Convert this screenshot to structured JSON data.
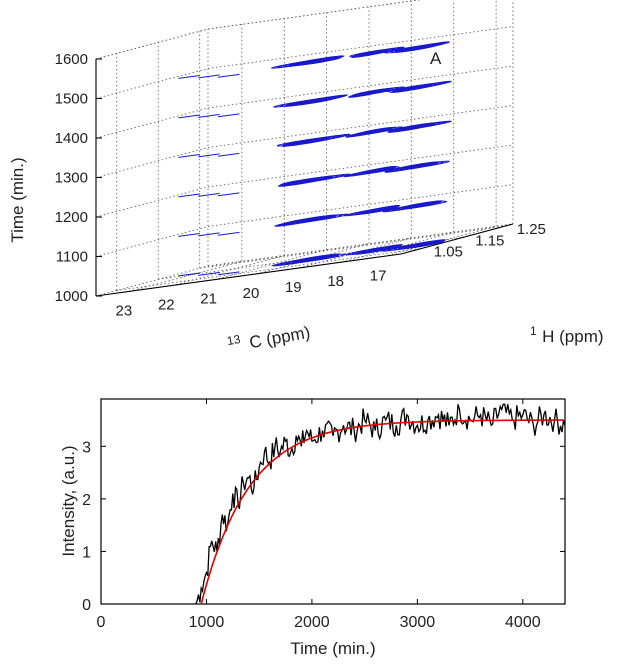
{
  "chart_data": [
    {
      "type": "contour3d",
      "z_axis": {
        "label": "Time (min.)",
        "ticks": [
          "1000",
          "1100",
          "1200",
          "1300",
          "1400",
          "1500",
          "1600"
        ],
        "range": [
          1000,
          1600
        ]
      },
      "x_axis": {
        "label_sup": "13",
        "label": "C (ppm)",
        "ticks": [
          "23",
          "22",
          "21",
          "20",
          "19",
          "18",
          "17"
        ],
        "range": [
          23.8,
          16.6
        ]
      },
      "y_axis": {
        "label_sup": "1",
        "label": "H (ppm)",
        "ticks": [
          "1.05",
          "1.15",
          "1.25"
        ],
        "range": [
          1.0,
          1.27
        ]
      },
      "annotation": "A",
      "grid": true,
      "contour_color": "#1a1acc",
      "planes": [
        {
          "time": 1000,
          "peaks": [
            {
              "c": 20.0,
              "h": 1.13,
              "amp": 1.0
            },
            {
              "c": 18.6,
              "h": 1.14,
              "amp": 0.6
            },
            {
              "c": 17.4,
              "h": 1.12,
              "amp": 0.8
            }
          ]
        },
        {
          "time": 1100,
          "peaks": [
            {
              "c": 20.0,
              "h": 1.13,
              "amp": 1.0
            },
            {
              "c": 18.6,
              "h": 1.14,
              "amp": 0.6
            },
            {
              "c": 17.4,
              "h": 1.12,
              "amp": 0.8
            }
          ]
        },
        {
          "time": 1200,
          "peaks": [
            {
              "c": 20.0,
              "h": 1.13,
              "amp": 1.0
            },
            {
              "c": 18.6,
              "h": 1.14,
              "amp": 0.6
            },
            {
              "c": 17.4,
              "h": 1.12,
              "amp": 0.8
            }
          ]
        },
        {
          "time": 1300,
          "peaks": [
            {
              "c": 20.0,
              "h": 1.13,
              "amp": 1.0
            },
            {
              "c": 18.6,
              "h": 1.14,
              "amp": 0.6
            },
            {
              "c": 17.4,
              "h": 1.12,
              "amp": 0.8
            }
          ]
        },
        {
          "time": 1400,
          "peaks": [
            {
              "c": 20.0,
              "h": 1.13,
              "amp": 1.0
            },
            {
              "c": 18.6,
              "h": 1.14,
              "amp": 0.6
            },
            {
              "c": 17.4,
              "h": 1.12,
              "amp": 0.8
            }
          ]
        },
        {
          "time": 1500,
          "peaks": [
            {
              "c": 20.0,
              "h": 1.13,
              "amp": 1.0
            },
            {
              "c": 18.6,
              "h": 1.14,
              "amp": 0.6
            },
            {
              "c": 17.4,
              "h": 1.12,
              "amp": 0.8
            }
          ]
        }
      ]
    },
    {
      "type": "line",
      "xlabel": "Time (min.)",
      "ylabel": "Intensity, (a.u.)",
      "xlim": [
        0,
        4400
      ],
      "ylim": [
        0,
        3.9
      ],
      "xticks": [
        0,
        1000,
        2000,
        3000,
        4000
      ],
      "yticks": [
        0,
        1,
        2,
        3
      ],
      "series": [
        {
          "style": "noisy data",
          "color": "#000000",
          "x": [
            900,
            950,
            1000,
            1050,
            1100,
            1150,
            1200,
            1250,
            1300,
            1350,
            1400,
            1450,
            1500,
            1550,
            1600,
            1650,
            1700,
            1750,
            1800,
            1850,
            1900,
            1950,
            2000,
            2100,
            2200,
            2300,
            2400,
            2500,
            2600,
            2700,
            2800,
            2900,
            3000,
            3100,
            3200,
            3300,
            3400,
            3500,
            3600,
            3700,
            3800,
            3900,
            4000,
            4100,
            4200,
            4300,
            4400
          ],
          "y": [
            0.0,
            0.3,
            0.6,
            1.2,
            1.0,
            1.7,
            1.5,
            2.1,
            1.9,
            2.3,
            2.4,
            2.2,
            2.6,
            2.9,
            2.7,
            3.0,
            2.9,
            3.1,
            2.9,
            3.2,
            3.0,
            3.3,
            3.1,
            3.3,
            3.2,
            3.4,
            3.3,
            3.5,
            3.3,
            3.5,
            3.4,
            3.6,
            3.4,
            3.5,
            3.6,
            3.4,
            3.7,
            3.5,
            3.6,
            3.4,
            3.7,
            3.5,
            3.6,
            3.4,
            3.6,
            3.5,
            3.4
          ]
        },
        {
          "style": "fit",
          "color": "#e00000",
          "model": "exponential rise",
          "x0": 950,
          "plateau": 3.5,
          "tau": 450
        }
      ]
    }
  ]
}
